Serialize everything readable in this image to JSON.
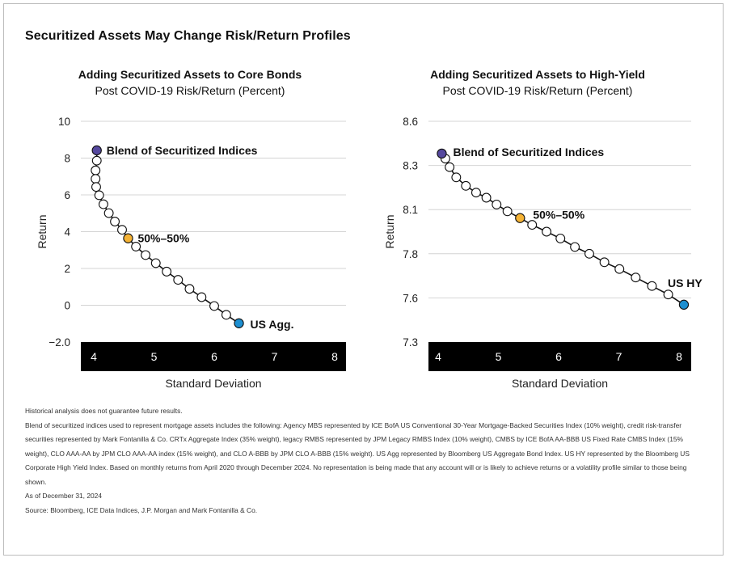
{
  "main_title": "Securitized Assets May Change Risk/Return Profiles",
  "charts": [
    {
      "title": "Adding Securitized Assets to Core Bonds",
      "subtitle": "Post COVID-19 Risk/Return (Percent)",
      "chart_data": {
        "type": "scatter",
        "xlabel": "Standard Deviation",
        "ylabel": "Return",
        "xlim": [
          4,
          8
        ],
        "ylim": [
          -2,
          10
        ],
        "x_ticks": [
          "4",
          "5",
          "6",
          "7",
          "8"
        ],
        "y_ticks": [
          "10",
          "8",
          "6",
          "4",
          "2",
          "0",
          "−2.0"
        ],
        "grid": "horizontal",
        "series": [
          {
            "x": [
              4.05,
              4.05,
              4.03,
              4.03,
              4.04,
              4.09,
              4.16,
              4.25,
              4.35,
              4.47,
              4.57,
              4.7,
              4.86,
              5.03,
              5.21,
              5.4,
              5.59,
              5.79,
              6.0,
              6.2,
              6.41
            ],
            "y": [
              8.42,
              7.86,
              7.33,
              6.87,
              6.43,
              5.98,
              5.49,
              5.01,
              4.55,
              4.1,
              3.64,
              3.19,
              2.73,
              2.29,
              1.83,
              1.38,
              0.89,
              0.44,
              -0.04,
              -0.52,
              -0.98
            ]
          }
        ],
        "highlights": [
          {
            "label": "Blend of Securitized Indices",
            "x": 4.05,
            "y": 8.42,
            "color": "#55489e"
          },
          {
            "label": "50%–50%",
            "x": 4.57,
            "y": 3.64,
            "color": "#f5b335"
          },
          {
            "label": "US Agg.",
            "x": 6.41,
            "y": -0.98,
            "color": "#1d8fd1"
          }
        ]
      }
    },
    {
      "title": "Adding Securitized Assets to High-Yield",
      "subtitle": "Post COVID-19 Risk/Return (Percent)",
      "chart_data": {
        "type": "scatter",
        "xlabel": "Standard Deviation",
        "ylabel": "Return",
        "xlim": [
          4,
          8
        ],
        "ylim": [
          7.3,
          8.6
        ],
        "x_ticks": [
          "4",
          "5",
          "6",
          "7",
          "8"
        ],
        "y_ticks": [
          "8.6",
          "8.3",
          "8.1",
          "7.8",
          "7.6",
          "7.3"
        ],
        "grid": "horizontal",
        "series": [
          {
            "x": [
              4.06,
              4.12,
              4.19,
              4.3,
              4.46,
              4.63,
              4.8,
              4.97,
              5.15,
              5.36,
              5.56,
              5.8,
              6.03,
              6.27,
              6.51,
              6.76,
              7.01,
              7.28,
              7.55,
              7.82,
              8.08
            ],
            "y": [
              8.41,
              8.38,
              8.33,
              8.27,
              8.22,
              8.18,
              8.15,
              8.11,
              8.07,
              8.03,
              7.99,
              7.95,
              7.91,
              7.86,
              7.82,
              7.77,
              7.73,
              7.68,
              7.63,
              7.58,
              7.52
            ]
          }
        ],
        "highlights": [
          {
            "label": "Blend of Securitized Indices",
            "x": 4.06,
            "y": 8.41,
            "color": "#55489e"
          },
          {
            "label": "50%–50%",
            "x": 5.36,
            "y": 8.03,
            "color": "#f5b335"
          },
          {
            "label": "US HY",
            "x": 8.08,
            "y": 7.52,
            "color": "#1d8fd1"
          }
        ]
      }
    }
  ],
  "notes": [
    "Historical analysis does not guarantee future results.",
    "Blend of securitized indices used to represent mortgage assets includes the following: Agency MBS represented by ICE BofA US Conventional 30-Year Mortgage-Backed Securities Index (10% weight), credit risk-transfer securities represented by Mark Fontanilla & Co. CRTx Aggregate Index (35% weight), legacy RMBS represented by JPM Legacy RMBS Index (10% weight), CMBS by ICE BofA AA-BBB US Fixed Rate CMBS Index (15% weight), CLO AAA-AA by JPM CLO AAA-AA index (15% weight), and CLO A-BBB by JPM CLO A-BBB (15% weight). US Agg represented by Bloomberg US Aggregate Bond Index. US HY represented by the Bloomberg US Corporate High Yield Index. Based on monthly returns from April 2020 through December 2024. No representation is being made that any account will or is likely to achieve returns or a volatility profile similar to those being shown.",
    "As of December 31, 2024",
    "Source: Bloomberg, ICE Data Indices, J.P. Morgan and Mark Fontanilla & Co."
  ]
}
